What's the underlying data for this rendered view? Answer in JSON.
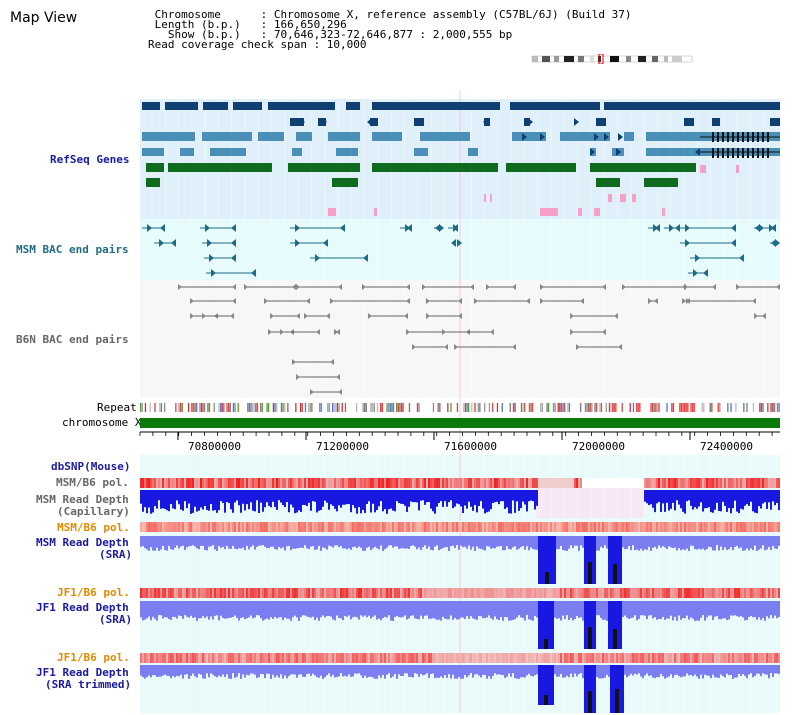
{
  "app": {
    "title": "Map View"
  },
  "info": {
    "rows": [
      {
        "label": "Chromosome",
        "value": "Chromosome X, reference assembly (C57BL/6J) (Build 37)"
      },
      {
        "label": "Length (b.p.)",
        "value": "166,650,296"
      },
      {
        "label": "Show (b.p.)",
        "value": "70,646,323-72,646,877 : 2,000,555 bp"
      }
    ],
    "coverage_label": "Read coverage check span",
    "coverage_value": "10,000",
    "sep": " : "
  },
  "tracks": {
    "refseq": "RefSeq Genes",
    "msm_bac": "MSM BAC end pairs",
    "b6n_bac": "B6N BAC end pairs",
    "repeat": "Repeat",
    "chromosome": "chromosome X",
    "dbsnp": "dbSNP(Mouse)",
    "msm_b6_pol_1": "MSM/B6 pol.",
    "msm_depth_cap": [
      "MSM Read Depth",
      "(Capillary)"
    ],
    "msm_b6_pol_2": "MSM/B6 pol.",
    "msm_depth_sra": [
      "MSM Read Depth",
      "(SRA)"
    ],
    "jf1_b6_pol_1": "JF1/B6 pol.",
    "jf1_depth_sra": [
      "JF1 Read Depth",
      "(SRA)"
    ],
    "jf1_b6_pol_2": "JF1/B6 pol.",
    "jf1_depth_trim": [
      "JF1 Read Depth",
      "(SRA trimmed)"
    ]
  },
  "axis": {
    "ticks": [
      "70800000",
      "71200000",
      "71600000",
      "72000000",
      "72400000"
    ]
  },
  "colors": {
    "refseq_bg": "#dff0fa",
    "msm_bac_bg": "#e6fbfb",
    "b6n_bac_bg": "#f7f7f9",
    "lower_bg": "#e8fafa",
    "track_label": "#1a1aa0",
    "gray_label": "#666666",
    "orange_label": "#e08a00",
    "teal_label": "#1f6b86",
    "chrom_green": "#0b7a0b",
    "gene_navy": "#0f3f73",
    "gene_steel": "#4a8fb8",
    "gene_green": "#0f6b1e",
    "gene_pink": "#f5a0c8",
    "depth_blue": "#1818e0",
    "depth_light": "#7a7ef0",
    "marker_pink": "#f5b8d0"
  }
}
